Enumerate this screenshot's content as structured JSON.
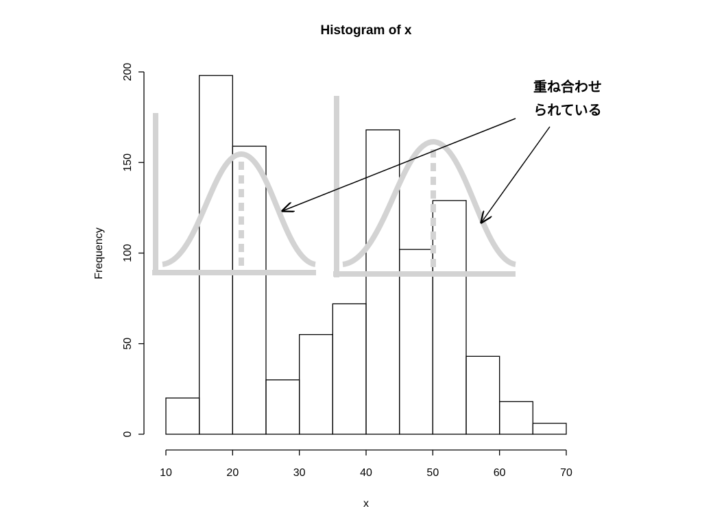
{
  "chart_data": {
    "type": "histogram",
    "title": "Histogram of x",
    "xlabel": "x",
    "ylabel": "Frequency",
    "bins": [
      10,
      15,
      20,
      25,
      30,
      35,
      40,
      45,
      50,
      55,
      60,
      65,
      70
    ],
    "values": [
      20,
      198,
      159,
      30,
      55,
      72,
      168,
      102,
      129,
      43,
      18,
      6
    ],
    "xlim": [
      10,
      70
    ],
    "xticks": [
      10,
      20,
      30,
      40,
      50,
      60,
      70
    ],
    "ylim": [
      0,
      200
    ],
    "yticks": [
      0,
      50,
      100,
      150,
      200
    ],
    "annotation": [
      "重ね合わせ",
      "られている"
    ]
  }
}
